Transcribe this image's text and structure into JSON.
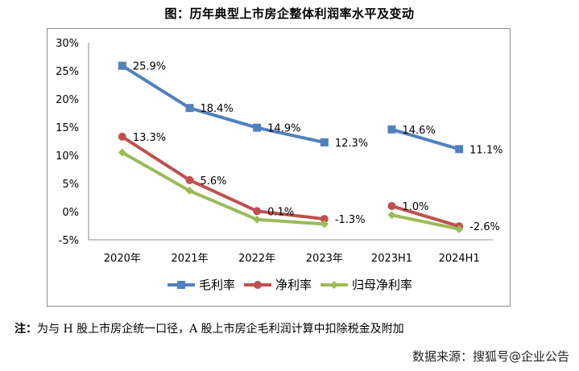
{
  "chart_data": {
    "type": "line",
    "title": "图：历年典型上市房企整体利润率水平及变动",
    "xlabel": "",
    "ylabel": "",
    "categories": [
      "2020年",
      "2021年",
      "2022年",
      "2023年",
      "2023H1",
      "2024H1"
    ],
    "segments": [
      [
        0,
        3
      ],
      [
        4,
        5
      ]
    ],
    "ylim": [
      -5,
      30
    ],
    "yticks": [
      -5,
      0,
      5,
      10,
      15,
      20,
      25,
      30
    ],
    "ytick_labels": [
      "-5%",
      "0%",
      "5%",
      "10%",
      "15%",
      "20%",
      "25%",
      "30%"
    ],
    "grid": false,
    "legend_position": "bottom",
    "series": [
      {
        "name": "毛利率",
        "color": "#4f81bd",
        "marker": "square",
        "values": [
          25.9,
          18.4,
          14.9,
          12.3,
          14.6,
          11.1
        ],
        "labels": [
          "25.9%",
          "18.4%",
          "14.9%",
          "12.3%",
          "14.6%",
          "11.1%"
        ]
      },
      {
        "name": "净利率",
        "color": "#c0504d",
        "marker": "circle",
        "values": [
          13.3,
          5.6,
          0.1,
          -1.3,
          1.0,
          -2.6
        ],
        "labels": [
          "13.3%",
          "5.6%",
          "0.1%",
          "-1.3%",
          "1.0%",
          "-2.6%"
        ]
      },
      {
        "name": "归母净利率",
        "color": "#9bbb59",
        "marker": "diamond",
        "values": [
          10.5,
          3.7,
          -1.4,
          -2.2,
          -0.6,
          -3.1
        ],
        "labels": null
      }
    ]
  },
  "note": {
    "prefix": "注：",
    "text": "为与 H 股上市房企统一口径，A 股上市房企毛利润计算中扣除税金及附加"
  },
  "source": "数据来源：搜狐号@企业公告"
}
